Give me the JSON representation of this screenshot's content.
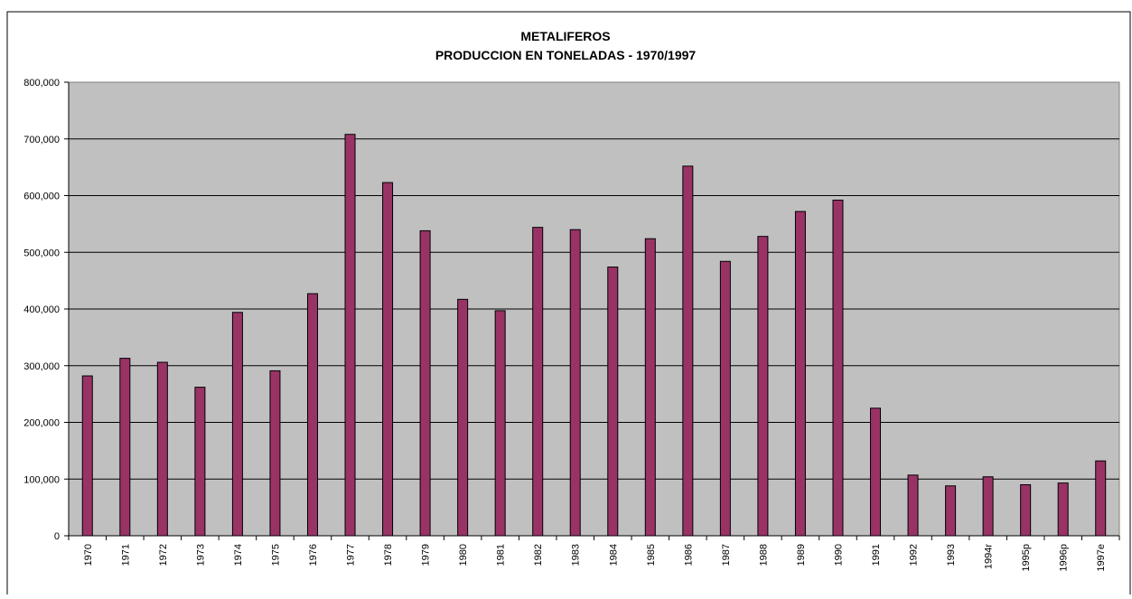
{
  "chart_data": {
    "type": "bar",
    "title": "METALIFEROS",
    "subtitle": "PRODUCCION EN TONELADAS - 1970/1997",
    "xlabel": "",
    "ylabel": "",
    "ylim": [
      0,
      800000
    ],
    "yticks": [
      "0",
      "100,000",
      "200,000",
      "300,000",
      "400,000",
      "500,000",
      "600,000",
      "700,000",
      "800,000"
    ],
    "ytick_values": [
      0,
      100000,
      200000,
      300000,
      400000,
      500000,
      600000,
      700000,
      800000
    ],
    "grid": true,
    "legend": "none",
    "colors": {
      "bar": "#993366",
      "plot_bg": "#c0c0c0",
      "gridline": "#000000",
      "border": "#000000"
    },
    "categories": [
      "1970",
      "1971",
      "1972",
      "1973",
      "1974",
      "1975",
      "1976",
      "1977",
      "1978",
      "1979",
      "1980",
      "1981",
      "1982",
      "1983",
      "1984",
      "1985",
      "1986",
      "1987",
      "1988",
      "1989",
      "1990",
      "1991",
      "1992",
      "1993",
      "1994r",
      "1995p",
      "1996p",
      "1997e"
    ],
    "values": [
      282000,
      313000,
      306000,
      262000,
      394000,
      291000,
      427000,
      708000,
      623000,
      538000,
      417000,
      397000,
      544000,
      540000,
      474000,
      524000,
      652000,
      484000,
      528000,
      572000,
      592000,
      225000,
      107000,
      88000,
      104000,
      90000,
      93000,
      132000
    ]
  }
}
